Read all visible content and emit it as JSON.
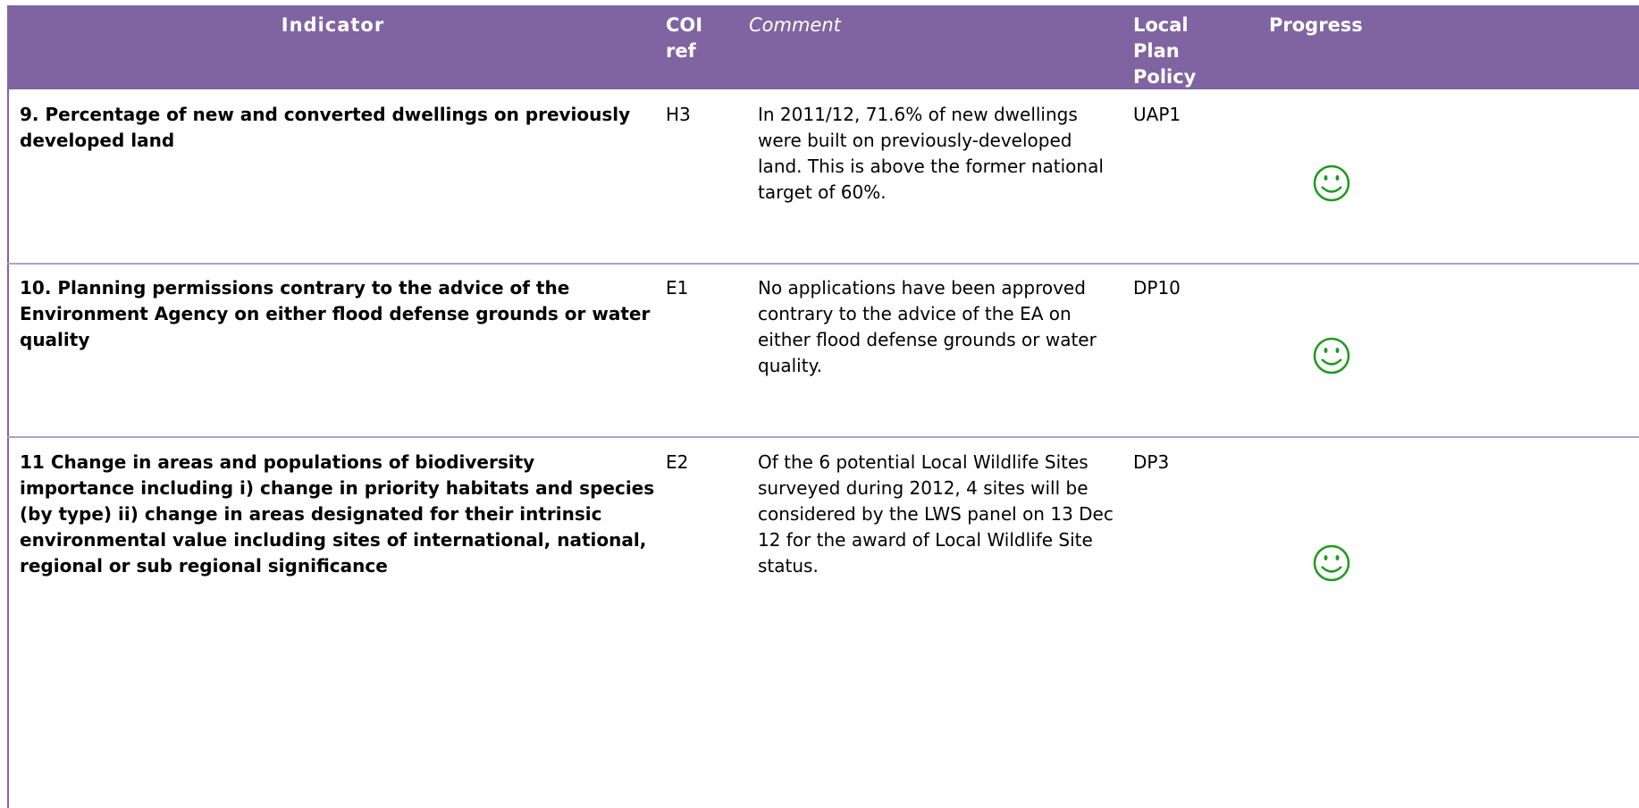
{
  "table": {
    "headers": [
      "Indicator",
      "COI ref",
      "Comment",
      "Local Plan Policy",
      "Progress"
    ],
    "rows": [
      [
        "9. Percentage of new and converted dwellings on previously developed land",
        "H3",
        "In 2011/12, 71.6% of new dwellings were built on previously-developed land. This is above the former national target of 60%.",
        "UAP1"
      ],
      [
        "10. Planning permissions contrary to the advice of the Environment Agency on either flood defense grounds or water quality",
        "E1",
        "No applications have been approved contrary to the advice of the EA on either flood defense grounds or water quality.",
        "DP10"
      ],
      [
        "11\tChange in areas and populations of biodiversity  importance including i) change in priority habitats and species (by type) ii) change in areas designated for their intrinsic environmental value including sites of international, national, regional or sub regional significance",
        "E2",
        "Of the 6 potential Local Wildlife Sites surveyed during 2012, 4 sites will be considered by the LWS panel on 13 Dec 12 for the award of Local Wildlife Site status.",
        "DP3"
      ]
    ]
  }
}
